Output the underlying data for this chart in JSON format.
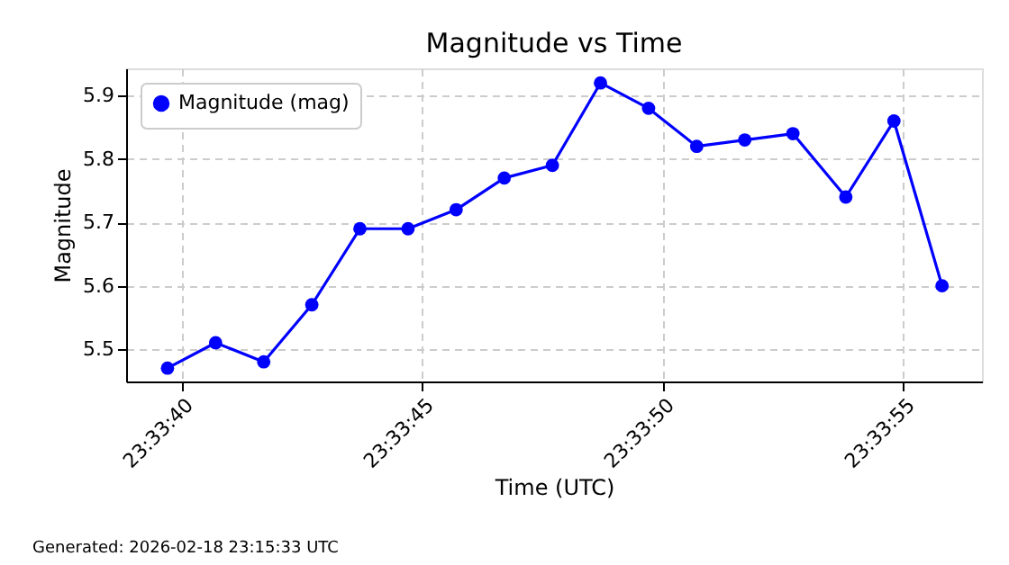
{
  "chart_data": {
    "type": "line",
    "title": "Magnitude vs Time",
    "xlabel": "Time (UTC)",
    "ylabel": "Magnitude",
    "x": [
      "2026-02-18T23:33:39.7",
      "2026-02-18T23:33:40.7",
      "2026-02-18T23:33:41.7",
      "2026-02-18T23:33:42.7",
      "2026-02-18T23:33:43.7",
      "2026-02-18T23:33:44.7",
      "2026-02-18T23:33:45.7",
      "2026-02-18T23:33:46.7",
      "2026-02-18T23:33:47.7",
      "2026-02-18T23:33:48.7",
      "2026-02-18T23:33:49.7",
      "2026-02-18T23:33:50.7",
      "2026-02-18T23:33:51.7",
      "2026-02-18T23:33:52.7",
      "2026-02-18T23:33:53.8",
      "2026-02-18T23:33:54.8",
      "2026-02-18T23:33:55.8"
    ],
    "series": [
      {
        "name": "Magnitude (mag)",
        "color": "#0000ff",
        "values": [
          5.47,
          5.51,
          5.48,
          5.57,
          5.69,
          5.69,
          5.72,
          5.77,
          5.79,
          5.92,
          5.88,
          5.82,
          5.83,
          5.84,
          5.74,
          5.86,
          5.6
        ]
      }
    ],
    "xlim": [
      "2026-02-18T23:33:38.84",
      "2026-02-18T23:33:56.63"
    ],
    "xticks": [
      {
        "value": "2026-02-18T23:33:40",
        "label": "23:33:40"
      },
      {
        "value": "2026-02-18T23:33:45",
        "label": "23:33:45"
      },
      {
        "value": "2026-02-18T23:33:50",
        "label": "23:33:50"
      },
      {
        "value": "2026-02-18T23:33:55",
        "label": "23:33:55"
      }
    ],
    "ylim": [
      5.449,
      5.943
    ],
    "yticks": [
      5.5,
      5.6,
      5.7,
      5.8,
      5.9
    ],
    "grid": true,
    "legend": "top left",
    "marker": "circle",
    "line_style": "solid",
    "annotations": [
      "Generated: 2026-02-18 23:15:33 UTC"
    ]
  }
}
